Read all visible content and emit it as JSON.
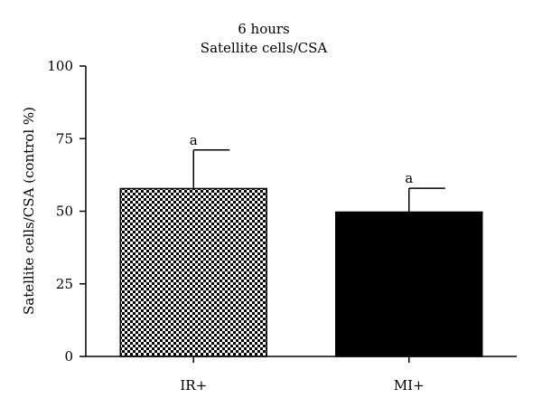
{
  "chart_data": {
    "type": "bar",
    "title": "6 hours",
    "subtitle": "Satellite cells/CSA",
    "xlabel": "",
    "ylabel": "Satellite cells/CSA (control %)",
    "ylim": [
      0,
      100
    ],
    "yticks": [
      0,
      25,
      50,
      75,
      100
    ],
    "grid": false,
    "categories": [
      "IR+",
      "MI+"
    ],
    "values": [
      57.8,
      49.7
    ],
    "error_upper": [
      13.3,
      8.2
    ],
    "annotations": [
      "a",
      "a"
    ],
    "bar_styles": [
      {
        "fill": "checkered",
        "colors": [
          "#000000",
          "#ffffff"
        ]
      },
      {
        "fill": "solid",
        "colors": [
          "#000000"
        ]
      }
    ]
  }
}
